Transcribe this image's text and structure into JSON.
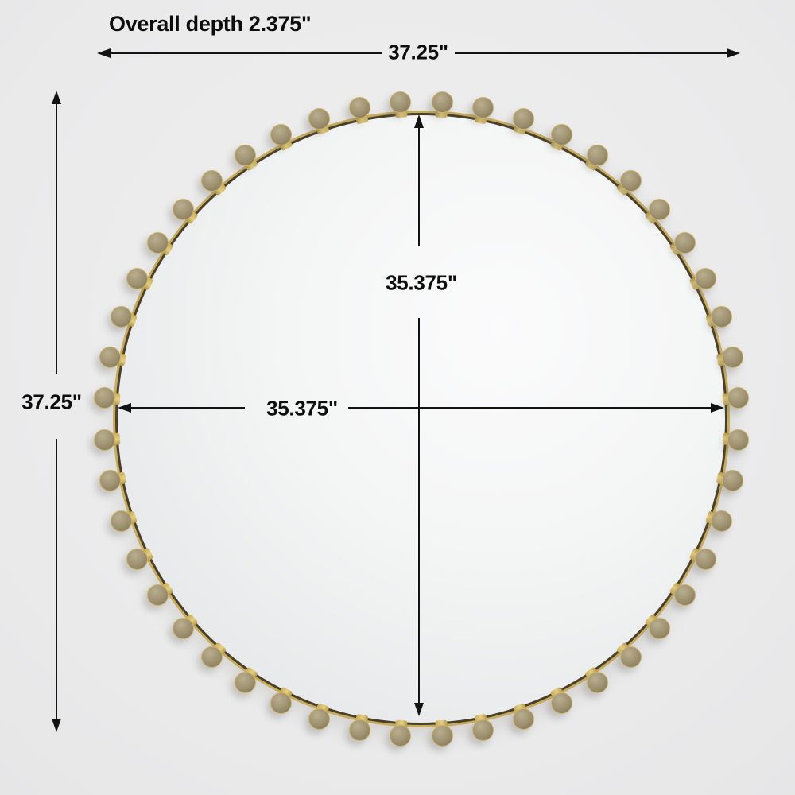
{
  "title": "Overall depth 2.375\"",
  "dimensions": {
    "overall_width": "37.25\"",
    "overall_height": "37.25\"",
    "mirror_width": "35.375\"",
    "mirror_height": "35.375\""
  },
  "product": {
    "type": "round beaded-frame mirror",
    "bead_count": 48
  },
  "colors": {
    "background": "#ebebec",
    "arrow": "#131313",
    "frame_gold": "#c7ac60",
    "frame_edge": "#4a3f28",
    "bead_face": "#9c9070",
    "bead_highlight": "#b9ae8d",
    "bead_collar": "#cdb267",
    "glass_light": "#fbfbfc",
    "glass_dark": "#e2e3e4"
  }
}
